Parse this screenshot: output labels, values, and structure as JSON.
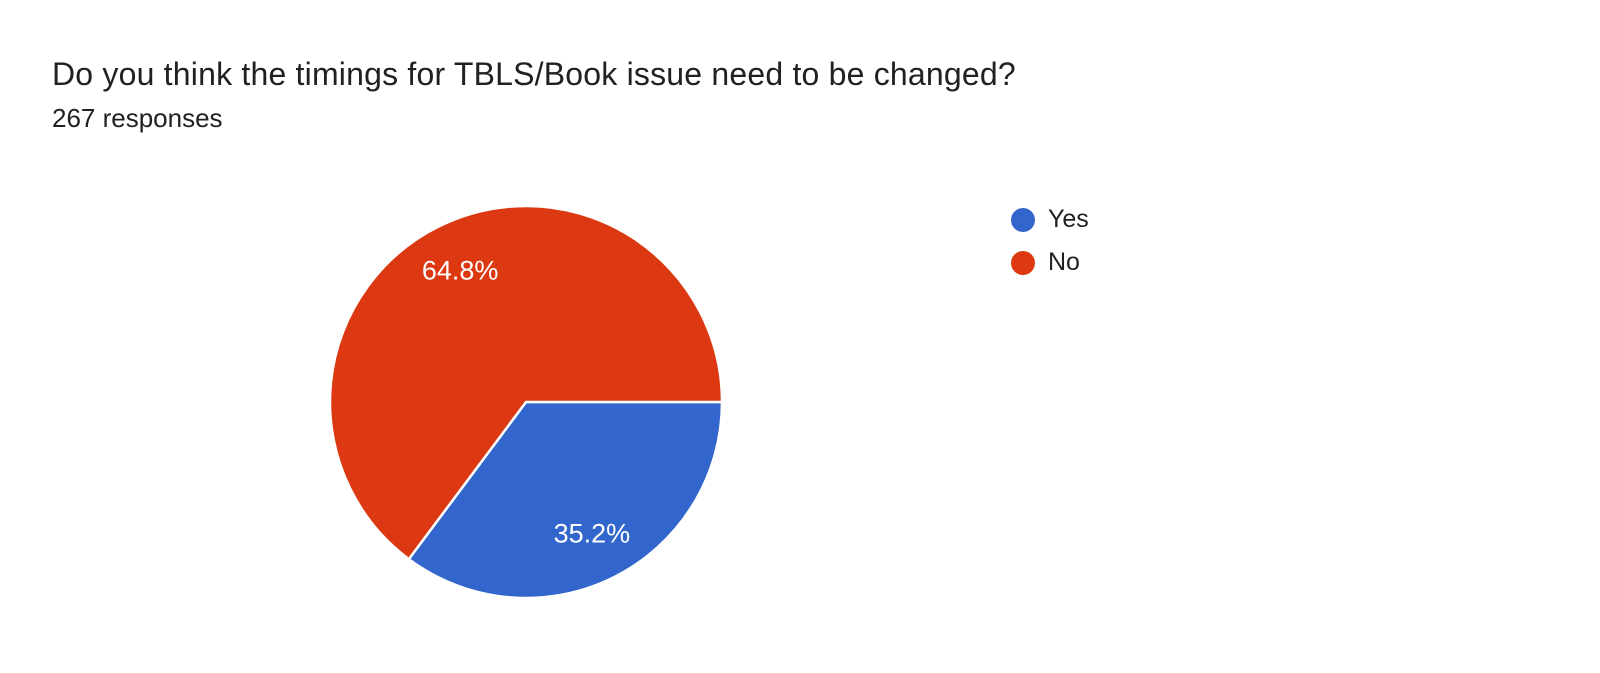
{
  "page": {
    "background_color": "#ffffff"
  },
  "header": {
    "title": "Do you think the timings for TBLS/Book issue need to be changed?",
    "responses_count": "267 responses"
  },
  "chart_data": {
    "type": "pie",
    "title": "Do you think the timings for TBLS/Book issue need to be changed?",
    "subtitle": "267 responses",
    "total_responses": 267,
    "start_angle_deg": 0,
    "direction": "clockwise",
    "legend_position": "right",
    "slice_border_color": "#ffffff",
    "slice_label_color": "#ffffff",
    "slices": [
      {
        "label": "Yes",
        "percent": 35.2,
        "display_label": "35.2%",
        "color": "#3366cc"
      },
      {
        "label": "No",
        "percent": 64.8,
        "display_label": "64.8%",
        "color": "#dc3912"
      }
    ]
  }
}
